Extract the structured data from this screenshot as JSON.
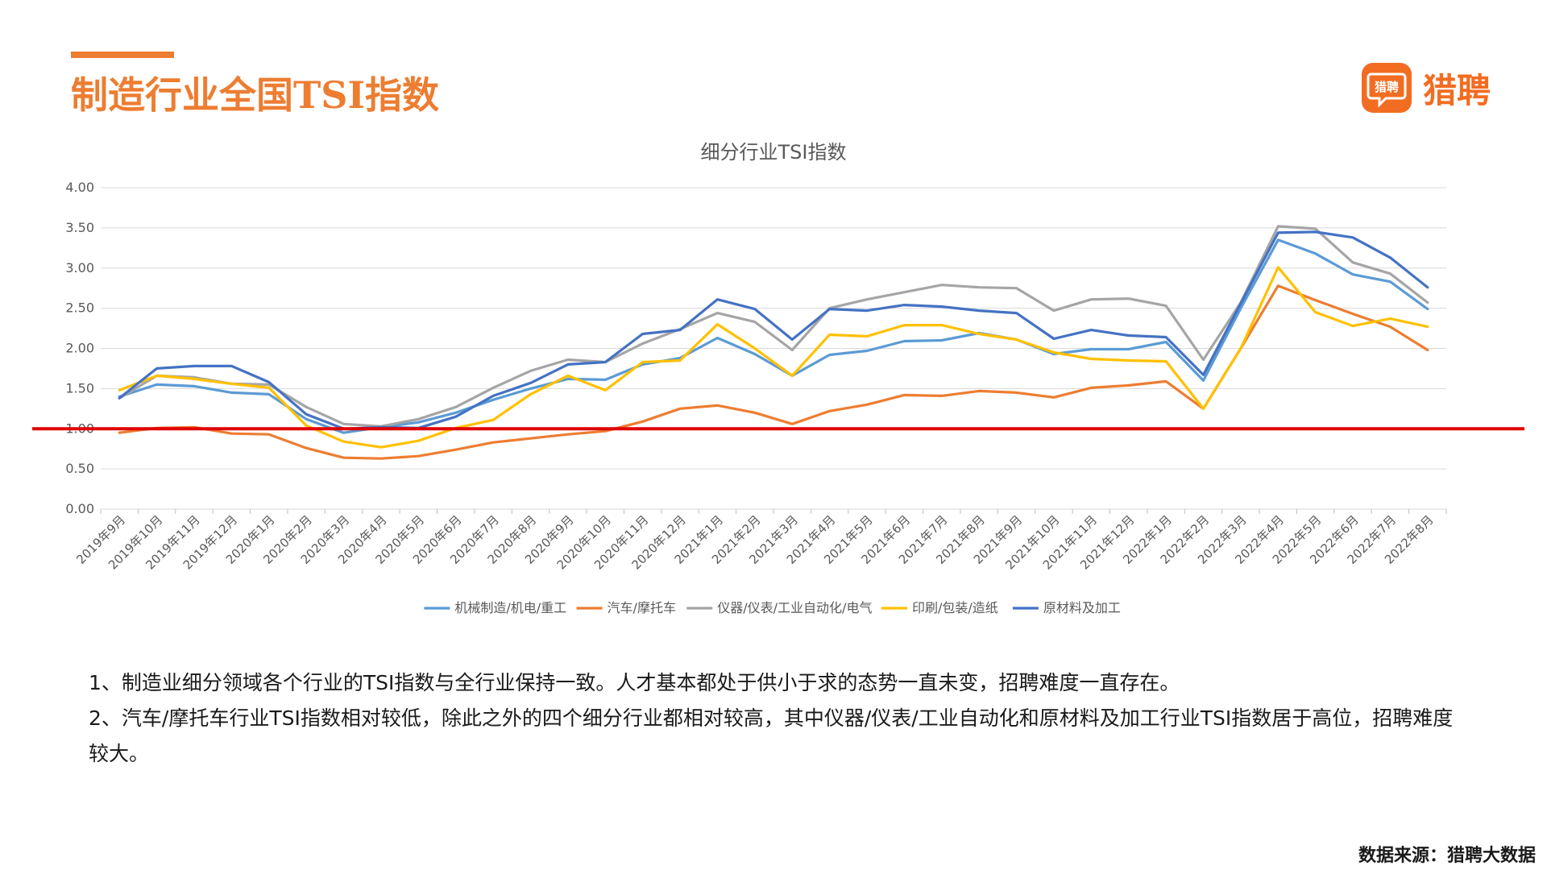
{
  "header": {
    "title": "制造行业全国TSI指数",
    "logo_icon_text": "猎聘",
    "logo_text": "猎聘"
  },
  "colors": {
    "accent": "#ED7D31",
    "reference_line": "#E00000"
  },
  "chart_data": {
    "type": "line",
    "title": "细分行业TSI指数",
    "xlabel": "",
    "ylabel": "",
    "ylim": [
      0,
      4
    ],
    "y_ticks": [
      "0.00",
      "0.50",
      "1.00",
      "1.50",
      "2.00",
      "2.50",
      "3.00",
      "3.50",
      "4.00"
    ],
    "reference_line": 1.0,
    "legend_position": "bottom",
    "grid": true,
    "categories": [
      "2019年9月",
      "2019年10月",
      "2019年11月",
      "2019年12月",
      "2020年1月",
      "2020年2月",
      "2020年3月",
      "2020年4月",
      "2020年5月",
      "2020年6月",
      "2020年7月",
      "2020年8月",
      "2020年9月",
      "2020年10月",
      "2020年11月",
      "2020年12月",
      "2021年1月",
      "2021年2月",
      "2021年3月",
      "2021年4月",
      "2021年5月",
      "2021年6月",
      "2021年7月",
      "2021年8月",
      "2021年9月",
      "2021年10月",
      "2021年11月",
      "2021年12月",
      "2022年1月",
      "2022年2月",
      "2022年3月",
      "2022年4月",
      "2022年5月",
      "2022年6月",
      "2022年7月",
      "2022年8月"
    ],
    "series": [
      {
        "name": "机械制造/机电/重工",
        "color": "#5B9BD5",
        "values": [
          1.4,
          1.55,
          1.53,
          1.45,
          1.43,
          1.12,
          0.95,
          1.02,
          1.08,
          1.2,
          1.36,
          1.5,
          1.62,
          1.61,
          1.8,
          1.88,
          2.13,
          1.93,
          1.66,
          1.92,
          1.97,
          2.09,
          2.1,
          2.19,
          2.11,
          1.93,
          1.99,
          1.99,
          2.08,
          1.6,
          2.5,
          3.35,
          3.18,
          2.92,
          2.83,
          2.49
        ]
      },
      {
        "name": "汽车/摩托车",
        "color": "#ED7D31",
        "values": [
          0.95,
          1.01,
          1.02,
          0.94,
          0.93,
          0.76,
          0.64,
          0.63,
          0.66,
          0.74,
          0.83,
          0.88,
          0.93,
          0.97,
          1.09,
          1.25,
          1.29,
          1.2,
          1.06,
          1.22,
          1.3,
          1.42,
          1.41,
          1.47,
          1.45,
          1.39,
          1.51,
          1.54,
          1.59,
          1.25,
          2.0,
          2.78,
          2.6,
          2.43,
          2.27,
          1.98
        ]
      },
      {
        "name": "仪器/仪表/工业自动化/电气",
        "color": "#A5A5A5",
        "values": [
          1.38,
          1.66,
          1.64,
          1.56,
          1.55,
          1.27,
          1.06,
          1.03,
          1.12,
          1.27,
          1.51,
          1.72,
          1.86,
          1.83,
          2.06,
          2.24,
          2.44,
          2.33,
          1.98,
          2.5,
          2.61,
          2.7,
          2.79,
          2.76,
          2.75,
          2.47,
          2.61,
          2.62,
          2.53,
          1.86,
          2.57,
          3.52,
          3.49,
          3.07,
          2.93,
          2.57
        ]
      },
      {
        "name": "印刷/包装/造纸",
        "color": "#FFC000",
        "values": [
          1.48,
          1.66,
          1.62,
          1.56,
          1.51,
          1.04,
          0.84,
          0.77,
          0.85,
          1.01,
          1.11,
          1.43,
          1.66,
          1.48,
          1.83,
          1.85,
          2.3,
          2.0,
          1.66,
          2.17,
          2.15,
          2.29,
          2.29,
          2.18,
          2.11,
          1.95,
          1.87,
          1.85,
          1.84,
          1.25,
          2.0,
          3.01,
          2.45,
          2.28,
          2.37,
          2.27
        ]
      },
      {
        "name": "原材料及加工",
        "color": "#4472C4",
        "values": [
          1.38,
          1.75,
          1.78,
          1.78,
          1.58,
          1.18,
          1.0,
          1.02,
          1.01,
          1.15,
          1.41,
          1.57,
          1.8,
          1.83,
          2.18,
          2.23,
          2.61,
          2.49,
          2.11,
          2.49,
          2.47,
          2.54,
          2.52,
          2.47,
          2.44,
          2.12,
          2.23,
          2.16,
          2.14,
          1.67,
          2.56,
          3.44,
          3.45,
          3.38,
          3.13,
          2.76
        ]
      }
    ]
  },
  "notes": [
    "1、制造业细分领域各个行业的TSI指数与全行业保持一致。人才基本都处于供小于求的态势一直未变，招聘难度一直存在。",
    "2、汽车/摩托车行业TSI指数相对较低，除此之外的四个细分行业都相对较高，其中仪器/仪表/工业自动化和原材料及加工行业TSI指数居于高位，招聘难度较大。"
  ],
  "footer": {
    "source": "数据来源：猎聘大数据"
  }
}
